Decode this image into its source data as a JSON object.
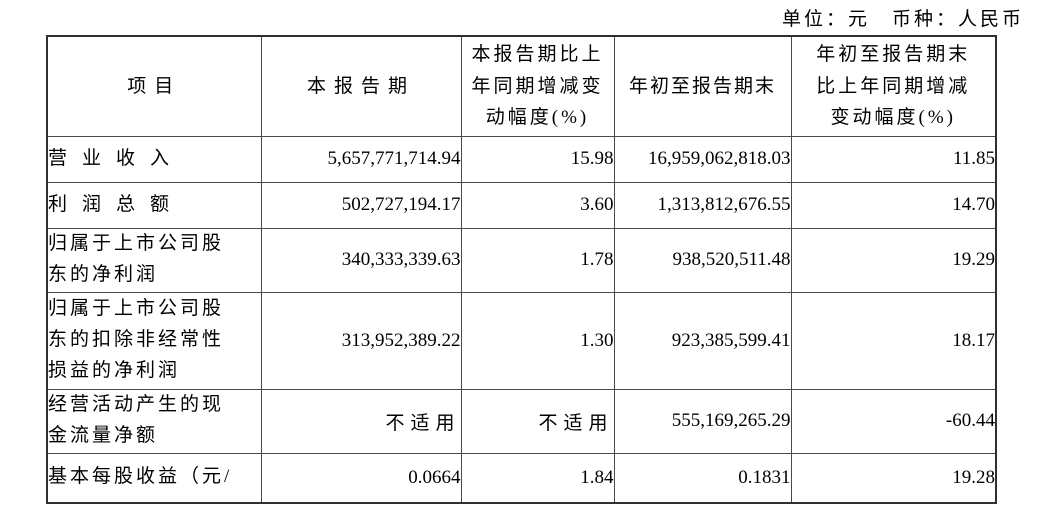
{
  "meta": {
    "unit_line": "单位：元　币种：人民币"
  },
  "table": {
    "headers": [
      "项目",
      "本报告期",
      "本报告期比上\n年同期增减变\n动幅度(%)",
      "年初至报告期末",
      "年初至报告期末\n比上年同期增减\n变动幅度(%)"
    ],
    "rows": [
      [
        "营业收入",
        "5,657,771,714.94",
        "15.98",
        "16,959,062,818.03",
        "11.85"
      ],
      [
        "利润总额",
        "502,727,194.17",
        "3.60",
        "1,313,812,676.55",
        "14.70"
      ],
      [
        "归属于上市公司股\n东的净利润",
        "340,333,339.63",
        "1.78",
        "938,520,511.48",
        "19.29"
      ],
      [
        "归属于上市公司股\n东的扣除非经常性\n损益的净利润",
        "313,952,389.22",
        "1.30",
        "923,385,599.41",
        "18.17"
      ],
      [
        "经营活动产生的现\n金流量净额",
        "不适用",
        "不适用",
        "555,169,265.29",
        "-60.44"
      ],
      [
        "基本每股收益（元/",
        "0.0664",
        "1.84",
        "0.1831",
        "19.28"
      ]
    ]
  }
}
